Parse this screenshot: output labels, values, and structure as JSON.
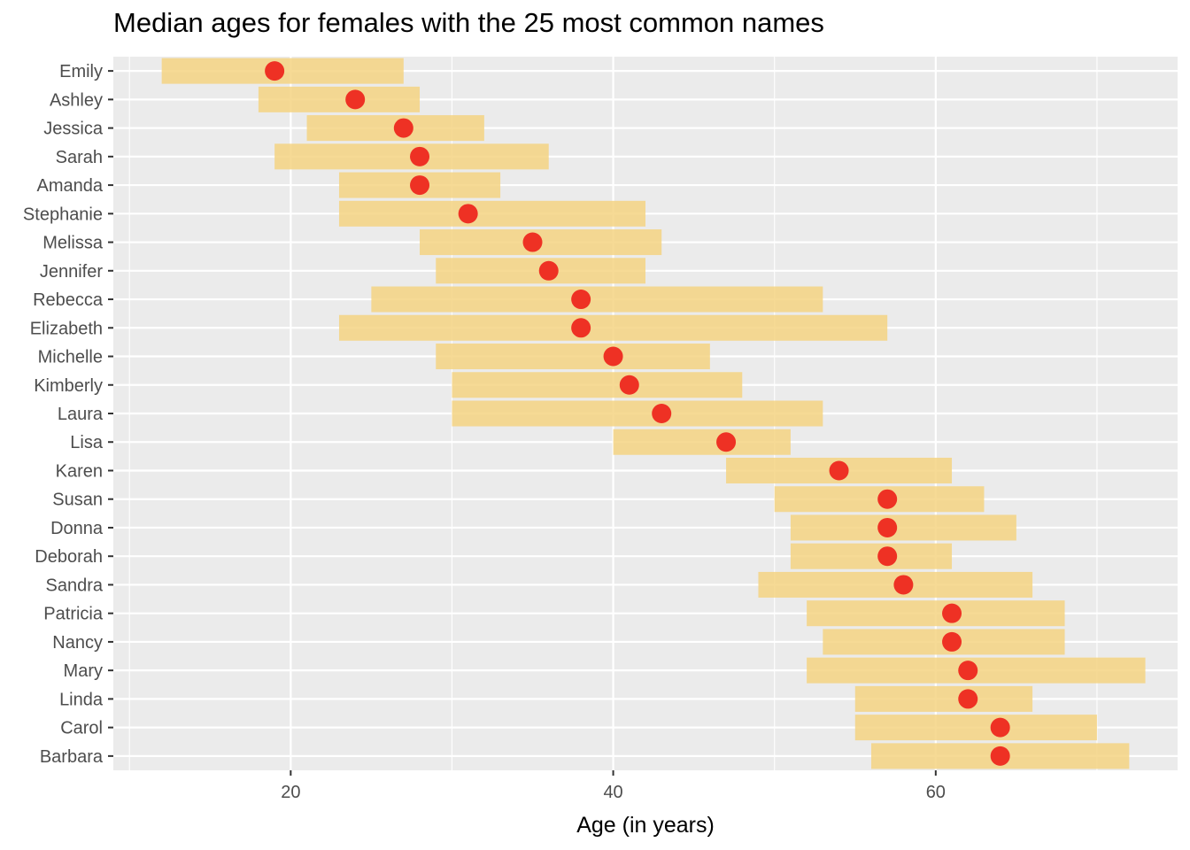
{
  "chart_data": {
    "type": "bar",
    "title": "Median ages for females with the 25 most common names",
    "xlabel": "Age (in years)",
    "ylabel": "",
    "xlim": [
      9,
      75
    ],
    "xticks": [
      20,
      40,
      60
    ],
    "grid": true,
    "legend": "none",
    "colors": {
      "panel": "#ebebeb",
      "grid": "#ffffff",
      "bar": "#f5d482",
      "point": "#ee3124"
    },
    "categories": [
      "Emily",
      "Ashley",
      "Jessica",
      "Sarah",
      "Amanda",
      "Stephanie",
      "Melissa",
      "Jennifer",
      "Rebecca",
      "Elizabeth",
      "Michelle",
      "Kimberly",
      "Laura",
      "Lisa",
      "Karen",
      "Susan",
      "Donna",
      "Deborah",
      "Sandra",
      "Patricia",
      "Nancy",
      "Mary",
      "Linda",
      "Carol",
      "Barbara"
    ],
    "series": [
      {
        "name": "",
        "kind": "interquartile-range",
        "low": [
          12,
          18,
          21,
          19,
          23,
          23,
          28,
          29,
          25,
          23,
          29,
          30,
          30,
          40,
          47,
          50,
          51,
          51,
          49,
          52,
          53,
          52,
          55,
          55,
          56
        ],
        "high": [
          27,
          28,
          32,
          36,
          33,
          42,
          43,
          42,
          53,
          57,
          46,
          48,
          53,
          51,
          61,
          63,
          65,
          61,
          66,
          68,
          68,
          73,
          66,
          70,
          72
        ]
      },
      {
        "name": "",
        "kind": "median",
        "values": [
          19,
          24,
          27,
          28,
          28,
          31,
          35,
          36,
          38,
          38,
          40,
          41,
          43,
          47,
          54,
          57,
          57,
          57,
          58,
          61,
          61,
          62,
          62,
          64,
          64
        ]
      }
    ]
  }
}
